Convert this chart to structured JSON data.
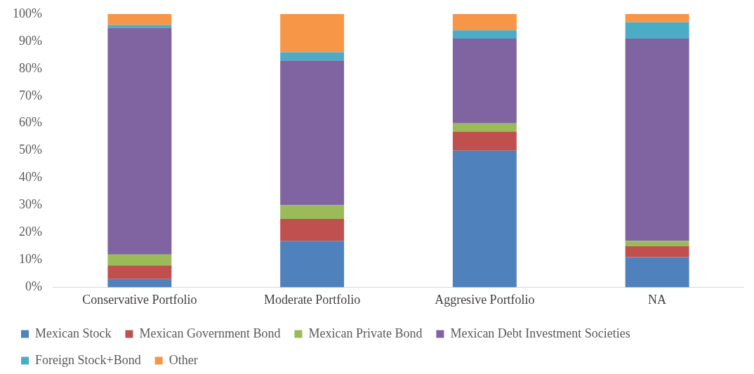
{
  "chart_data": {
    "type": "bar",
    "stacked": true,
    "categories": [
      "Conservative Portfolio",
      "Moderate Portfolio",
      "Aggresive Portfolio",
      "NA"
    ],
    "series": [
      {
        "name": "Mexican Stock",
        "color": "#4f81bd",
        "values": [
          3,
          17,
          50,
          11
        ]
      },
      {
        "name": "Mexican Government Bond",
        "color": "#c0504d",
        "values": [
          5,
          8,
          7,
          4
        ]
      },
      {
        "name": "Mexican Private Bond",
        "color": "#9bbb59",
        "values": [
          4,
          5,
          3,
          2
        ]
      },
      {
        "name": "Mexican Debt Investment Societies",
        "color": "#8064a2",
        "values": [
          83,
          53,
          31,
          74
        ]
      },
      {
        "name": "Foreign Stock+Bond",
        "color": "#4bacc6",
        "values": [
          1,
          3,
          3,
          6
        ]
      },
      {
        "name": "Other",
        "color": "#f79646",
        "values": [
          4,
          14,
          6,
          3
        ]
      }
    ],
    "ylim": [
      0,
      100
    ],
    "yticks": [
      {
        "value": 0,
        "label": "0%"
      },
      {
        "value": 10,
        "label": "10%"
      },
      {
        "value": 20,
        "label": "20%"
      },
      {
        "value": 30,
        "label": "30%"
      },
      {
        "value": 40,
        "label": "40%"
      },
      {
        "value": 50,
        "label": "50%"
      },
      {
        "value": 60,
        "label": "60%"
      },
      {
        "value": 70,
        "label": "70%"
      },
      {
        "value": 80,
        "label": "80%"
      },
      {
        "value": 90,
        "label": "90%"
      },
      {
        "value": 100,
        "label": "100%"
      }
    ],
    "grid": false,
    "legend": "bottom"
  }
}
